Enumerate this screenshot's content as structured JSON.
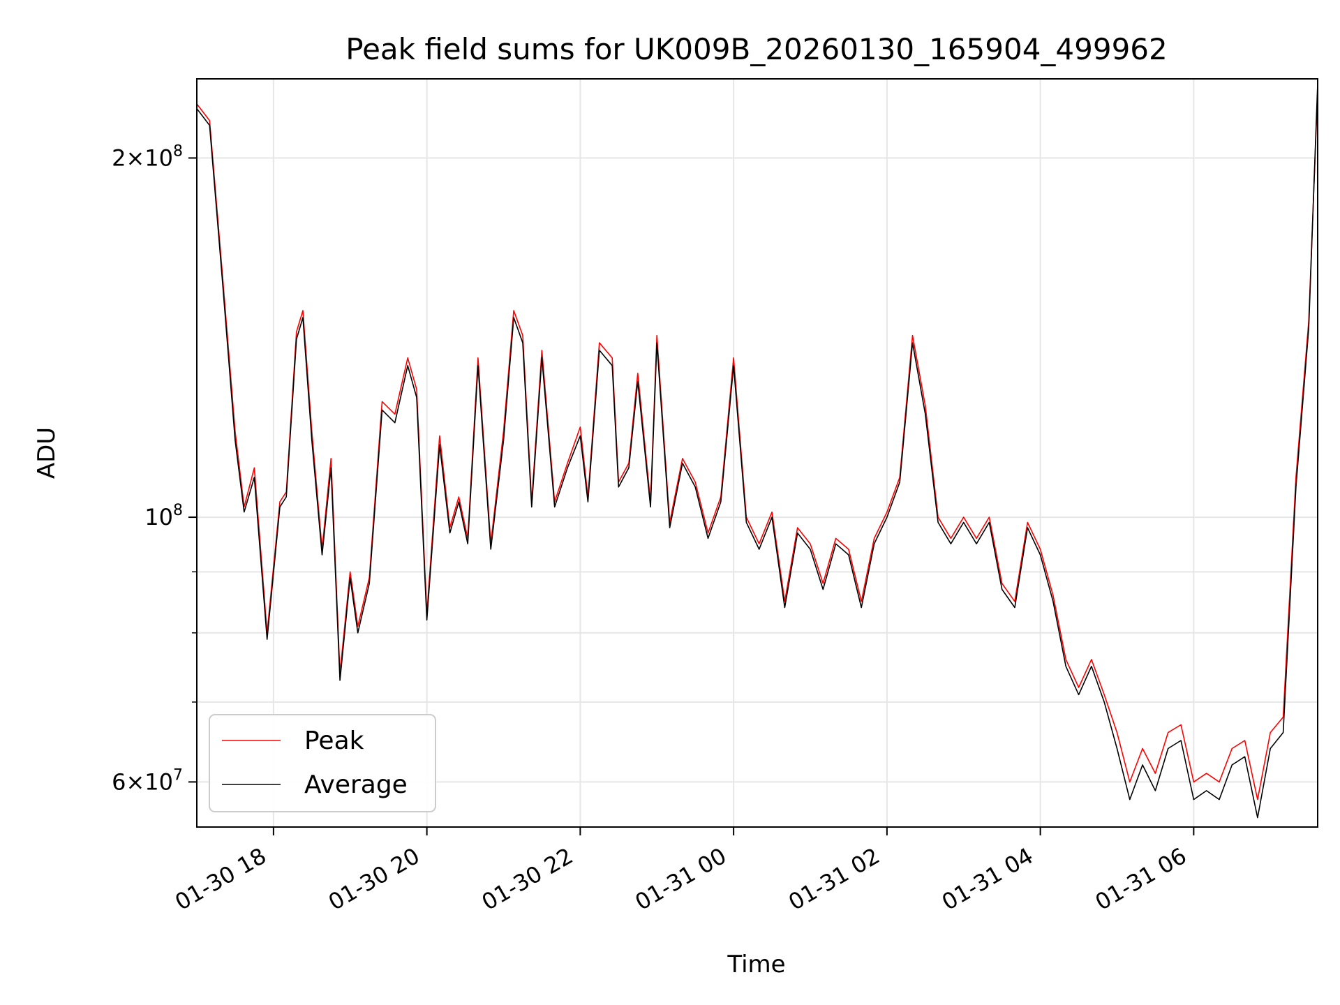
{
  "chart_data": {
    "type": "line",
    "title": "Peak field sums for UK009B_20260130_165904_499962",
    "xlabel": "Time",
    "ylabel": "ADU",
    "yscale": "log",
    "grid": true,
    "legend_position": "lower-left",
    "xlim": [
      "2026-01-30 17:00",
      "2026-01-31 07:37"
    ],
    "ylim": [
      55000000,
      233000000
    ],
    "x_ticks": [
      {
        "value": "2026-01-30 18:00",
        "label": "01-30 18"
      },
      {
        "value": "2026-01-30 20:00",
        "label": "01-30 20"
      },
      {
        "value": "2026-01-30 22:00",
        "label": "01-30 22"
      },
      {
        "value": "2026-01-31 00:00",
        "label": "01-31 00"
      },
      {
        "value": "2026-01-31 02:00",
        "label": "01-31 02"
      },
      {
        "value": "2026-01-31 04:00",
        "label": "01-31 04"
      },
      {
        "value": "2026-01-31 06:00",
        "label": "01-31 06"
      }
    ],
    "y_major_ticks": [
      {
        "value": 60000000,
        "mantissa": "6",
        "exponent": "7"
      },
      {
        "value": 100000000,
        "mantissa": "",
        "exponent": "8"
      },
      {
        "value": 200000000,
        "mantissa": "2",
        "exponent": "8"
      }
    ],
    "y_minor_ticks": [
      70000000,
      80000000,
      90000000
    ],
    "series": [
      {
        "name": "Peak",
        "color": "#ff0000",
        "x": [
          "2026-01-30 17:00",
          "2026-01-30 17:10",
          "2026-01-30 17:20",
          "2026-01-30 17:30",
          "2026-01-30 17:37",
          "2026-01-30 17:45",
          "2026-01-30 17:55",
          "2026-01-30 18:05",
          "2026-01-30 18:10",
          "2026-01-30 18:18",
          "2026-01-30 18:23",
          "2026-01-30 18:30",
          "2026-01-30 18:38",
          "2026-01-30 18:45",
          "2026-01-30 18:52",
          "2026-01-30 19:00",
          "2026-01-30 19:06",
          "2026-01-30 19:15",
          "2026-01-30 19:25",
          "2026-01-30 19:35",
          "2026-01-30 19:45",
          "2026-01-30 19:52",
          "2026-01-30 20:00",
          "2026-01-30 20:10",
          "2026-01-30 20:18",
          "2026-01-30 20:25",
          "2026-01-30 20:32",
          "2026-01-30 20:40",
          "2026-01-30 20:50",
          "2026-01-30 21:00",
          "2026-01-30 21:08",
          "2026-01-30 21:15",
          "2026-01-30 21:22",
          "2026-01-30 21:30",
          "2026-01-30 21:40",
          "2026-01-30 21:50",
          "2026-01-30 22:00",
          "2026-01-30 22:06",
          "2026-01-30 22:15",
          "2026-01-30 22:25",
          "2026-01-30 22:30",
          "2026-01-30 22:38",
          "2026-01-30 22:45",
          "2026-01-30 22:55",
          "2026-01-30 23:00",
          "2026-01-30 23:10",
          "2026-01-30 23:20",
          "2026-01-30 23:30",
          "2026-01-30 23:40",
          "2026-01-30 23:50",
          "2026-01-31 00:00",
          "2026-01-31 00:10",
          "2026-01-31 00:20",
          "2026-01-31 00:30",
          "2026-01-31 00:40",
          "2026-01-31 00:50",
          "2026-01-31 01:00",
          "2026-01-31 01:10",
          "2026-01-31 01:20",
          "2026-01-31 01:30",
          "2026-01-31 01:40",
          "2026-01-31 01:50",
          "2026-01-31 02:00",
          "2026-01-31 02:10",
          "2026-01-31 02:20",
          "2026-01-31 02:30",
          "2026-01-31 02:40",
          "2026-01-31 02:50",
          "2026-01-31 03:00",
          "2026-01-31 03:10",
          "2026-01-31 03:20",
          "2026-01-31 03:30",
          "2026-01-31 03:40",
          "2026-01-31 03:50",
          "2026-01-31 04:00",
          "2026-01-31 04:10",
          "2026-01-31 04:20",
          "2026-01-31 04:30",
          "2026-01-31 04:40",
          "2026-01-31 04:50",
          "2026-01-31 05:00",
          "2026-01-31 05:10",
          "2026-01-31 05:20",
          "2026-01-31 05:30",
          "2026-01-31 05:40",
          "2026-01-31 05:50",
          "2026-01-31 06:00",
          "2026-01-31 06:10",
          "2026-01-31 06:20",
          "2026-01-31 06:30",
          "2026-01-31 06:40",
          "2026-01-31 06:50",
          "2026-01-31 07:00",
          "2026-01-31 07:10",
          "2026-01-31 07:20",
          "2026-01-31 07:30",
          "2026-01-31 07:37"
        ],
        "values": [
          222000000,
          215000000,
          160000000,
          118000000,
          102000000,
          110000000,
          80000000,
          103000000,
          105000000,
          143000000,
          149000000,
          118000000,
          94000000,
          112000000,
          74000000,
          90000000,
          81000000,
          89000000,
          125000000,
          122000000,
          136000000,
          128000000,
          83000000,
          117000000,
          98000000,
          104000000,
          96000000,
          136000000,
          95000000,
          118000000,
          149000000,
          142000000,
          103000000,
          138000000,
          103000000,
          111000000,
          119000000,
          104000000,
          140000000,
          136000000,
          107000000,
          111000000,
          132000000,
          103000000,
          142000000,
          99000000,
          112000000,
          107000000,
          97000000,
          104000000,
          136000000,
          100000000,
          95000000,
          101000000,
          85000000,
          98000000,
          95000000,
          88000000,
          96000000,
          94000000,
          85000000,
          96000000,
          101000000,
          108000000,
          142000000,
          124000000,
          100000000,
          96000000,
          100000000,
          96000000,
          100000000,
          88000000,
          85000000,
          99000000,
          94000000,
          86000000,
          76000000,
          72000000,
          76000000,
          71000000,
          66000000,
          60000000,
          64000000,
          61000000,
          66000000,
          67000000,
          60000000,
          61000000,
          60000000,
          64000000,
          65000000,
          58000000,
          66000000,
          68000000,
          108000000,
          146000000,
          228000000
        ]
      },
      {
        "name": "Average",
        "color": "#000000",
        "x": [
          "2026-01-30 17:00",
          "2026-01-30 17:10",
          "2026-01-30 17:20",
          "2026-01-30 17:30",
          "2026-01-30 17:37",
          "2026-01-30 17:45",
          "2026-01-30 17:55",
          "2026-01-30 18:05",
          "2026-01-30 18:10",
          "2026-01-30 18:18",
          "2026-01-30 18:23",
          "2026-01-30 18:30",
          "2026-01-30 18:38",
          "2026-01-30 18:45",
          "2026-01-30 18:52",
          "2026-01-30 19:00",
          "2026-01-30 19:06",
          "2026-01-30 19:15",
          "2026-01-30 19:25",
          "2026-01-30 19:35",
          "2026-01-30 19:45",
          "2026-01-30 19:52",
          "2026-01-30 20:00",
          "2026-01-30 20:10",
          "2026-01-30 20:18",
          "2026-01-30 20:25",
          "2026-01-30 20:32",
          "2026-01-30 20:40",
          "2026-01-30 20:50",
          "2026-01-30 21:00",
          "2026-01-30 21:08",
          "2026-01-30 21:15",
          "2026-01-30 21:22",
          "2026-01-30 21:30",
          "2026-01-30 21:40",
          "2026-01-30 21:50",
          "2026-01-30 22:00",
          "2026-01-30 22:06",
          "2026-01-30 22:15",
          "2026-01-30 22:25",
          "2026-01-30 22:30",
          "2026-01-30 22:38",
          "2026-01-30 22:45",
          "2026-01-30 22:55",
          "2026-01-30 23:00",
          "2026-01-30 23:10",
          "2026-01-30 23:20",
          "2026-01-30 23:30",
          "2026-01-30 23:40",
          "2026-01-30 23:50",
          "2026-01-31 00:00",
          "2026-01-31 00:10",
          "2026-01-31 00:20",
          "2026-01-31 00:30",
          "2026-01-31 00:40",
          "2026-01-31 00:50",
          "2026-01-31 01:00",
          "2026-01-31 01:10",
          "2026-01-31 01:20",
          "2026-01-31 01:30",
          "2026-01-31 01:40",
          "2026-01-31 01:50",
          "2026-01-31 02:00",
          "2026-01-31 02:10",
          "2026-01-31 02:20",
          "2026-01-31 02:30",
          "2026-01-31 02:40",
          "2026-01-31 02:50",
          "2026-01-31 03:00",
          "2026-01-31 03:10",
          "2026-01-31 03:20",
          "2026-01-31 03:30",
          "2026-01-31 03:40",
          "2026-01-31 03:50",
          "2026-01-31 04:00",
          "2026-01-31 04:10",
          "2026-01-31 04:20",
          "2026-01-31 04:30",
          "2026-01-31 04:40",
          "2026-01-31 04:50",
          "2026-01-31 05:00",
          "2026-01-31 05:10",
          "2026-01-31 05:20",
          "2026-01-31 05:30",
          "2026-01-31 05:40",
          "2026-01-31 05:50",
          "2026-01-31 06:00",
          "2026-01-31 06:10",
          "2026-01-31 06:20",
          "2026-01-31 06:30",
          "2026-01-31 06:40",
          "2026-01-31 06:50",
          "2026-01-31 07:00",
          "2026-01-31 07:10",
          "2026-01-31 07:20",
          "2026-01-31 07:30",
          "2026-01-31 07:37"
        ],
        "values": [
          220000000,
          213000000,
          158000000,
          116000000,
          101000000,
          108000000,
          79000000,
          102000000,
          104000000,
          141000000,
          147000000,
          116000000,
          93000000,
          110000000,
          73000000,
          89000000,
          80000000,
          88000000,
          123000000,
          120000000,
          134000000,
          126000000,
          82000000,
          115000000,
          97000000,
          103000000,
          95000000,
          134000000,
          94000000,
          116000000,
          147000000,
          140000000,
          102000000,
          136000000,
          102000000,
          110000000,
          117000000,
          103000000,
          138000000,
          134000000,
          106000000,
          110000000,
          130000000,
          102000000,
          140000000,
          98000000,
          111000000,
          106000000,
          96000000,
          103000000,
          134000000,
          99000000,
          94000000,
          100000000,
          84000000,
          97000000,
          94000000,
          87000000,
          95000000,
          93000000,
          84000000,
          95000000,
          100000000,
          107000000,
          140000000,
          122000000,
          99000000,
          95000000,
          99000000,
          95000000,
          99000000,
          87000000,
          84000000,
          98000000,
          93000000,
          85000000,
          75000000,
          71000000,
          75000000,
          70000000,
          64000000,
          58000000,
          62000000,
          59000000,
          64000000,
          65000000,
          58000000,
          59000000,
          58000000,
          62000000,
          63000000,
          56000000,
          64000000,
          66000000,
          106000000,
          144000000,
          231000000
        ]
      }
    ]
  }
}
